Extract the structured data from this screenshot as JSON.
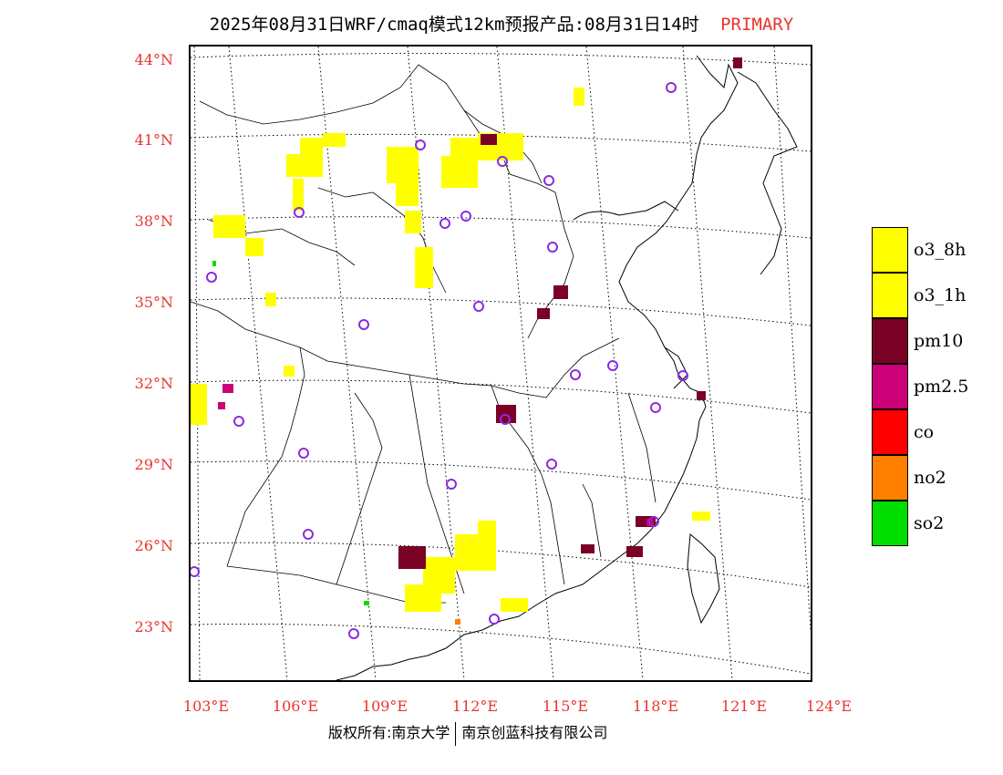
{
  "title": {
    "main": "2025年08月31日WRF/cmaq模式12km预报产品:08月31日14时",
    "tag": "PRIMARY"
  },
  "map": {
    "lat_labels": [
      "44°N",
      "41°N",
      "38°N",
      "35°N",
      "32°N",
      "29°N",
      "26°N",
      "23°N"
    ],
    "lon_labels": [
      "103°E",
      "106°E",
      "109°E",
      "112°E",
      "115°E",
      "118°E",
      "121°E",
      "124°E"
    ],
    "region": "East and Central China with pollutant primary-species overlay"
  },
  "legend": [
    {
      "label": "o3_8h",
      "color": "#ffff00"
    },
    {
      "label": "o3_1h",
      "color": "#ffff00"
    },
    {
      "label": "pm10",
      "color": "#7a0026"
    },
    {
      "label": "pm2.5",
      "color": "#cc0077"
    },
    {
      "label": "co",
      "color": "#ff0000"
    },
    {
      "label": "no2",
      "color": "#ff8000"
    },
    {
      "label": "so2",
      "color": "#00dd00"
    }
  ],
  "footer": {
    "left": "版权所有:南京大学",
    "right": "南京创蓝科技有限公司"
  },
  "colors": {
    "accent_red": "#e8342e",
    "station_circle": "#8a2be2"
  }
}
